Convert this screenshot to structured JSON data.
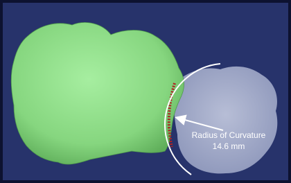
{
  "annotation": {
    "label": "Radius of Curvature",
    "measurement": "14.6 mm"
  }
}
